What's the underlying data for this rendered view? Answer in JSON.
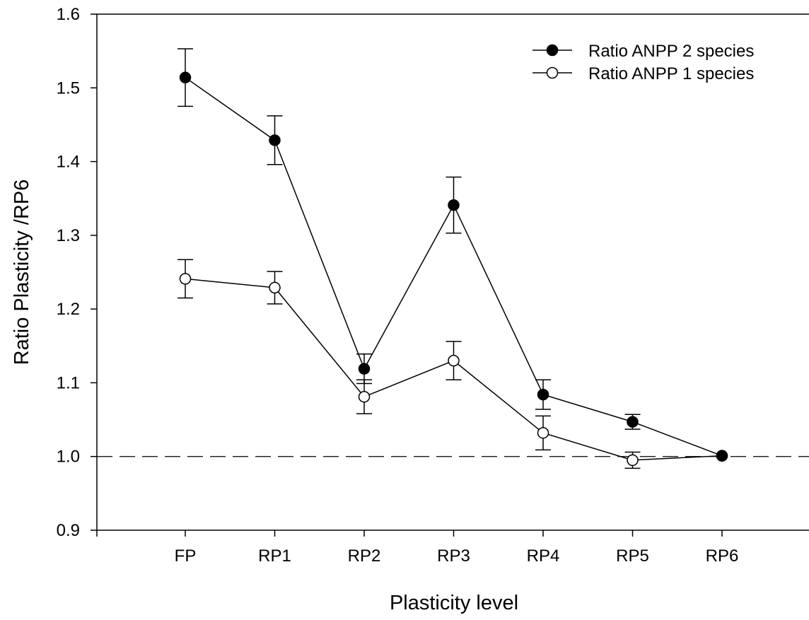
{
  "chart_data": {
    "type": "line",
    "title": "",
    "xlabel": "Plasticity level",
    "ylabel": "Ratio Plasticity /RP6",
    "categories": [
      "FP",
      "RP1",
      "RP2",
      "RP3",
      "RP4",
      "RP5",
      "RP6"
    ],
    "ylim": [
      0.9,
      1.6
    ],
    "yticks": [
      "0.9",
      "1.0",
      "1.1",
      "1.2",
      "1.3",
      "1.4",
      "1.5",
      "1.6"
    ],
    "reference_line": {
      "y": 1.0,
      "style": "dashed"
    },
    "grid": false,
    "legend_position": "top-right",
    "series": [
      {
        "name": "Ratio ANPP 2 species",
        "marker": "filled-circle",
        "color": "#000000",
        "values": [
          1.514,
          1.429,
          1.119,
          1.341,
          1.084,
          1.047,
          1.001
        ],
        "error": [
          0.039,
          0.033,
          0.02,
          0.038,
          0.02,
          0.01,
          0.0
        ]
      },
      {
        "name": "Ratio ANPP 1 species",
        "marker": "open-circle",
        "color": "#000000",
        "values": [
          1.241,
          1.229,
          1.081,
          1.13,
          1.032,
          0.995,
          1.001
        ],
        "error": [
          0.026,
          0.022,
          0.023,
          0.026,
          0.023,
          0.011,
          0.0
        ]
      }
    ]
  }
}
